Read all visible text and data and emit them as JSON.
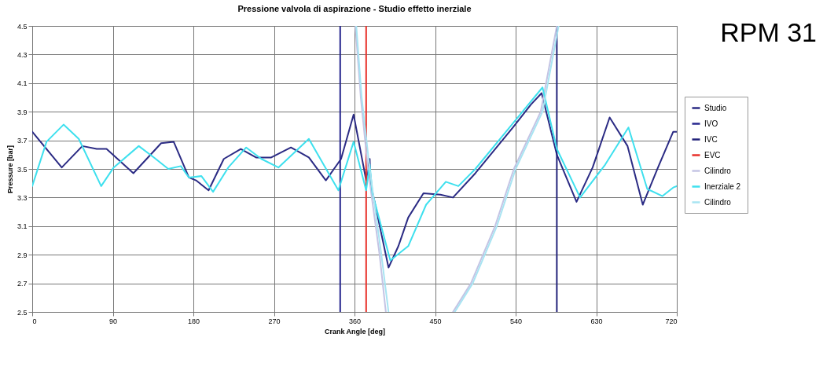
{
  "chart_data": {
    "type": "line",
    "title": "Pressione valvola di aspirazione - Studio effetto inerziale",
    "xlabel": "Crank Angle [deg]",
    "ylabel": "Pressure [bar]",
    "annotations": [
      "RPM 31"
    ],
    "xlim": [
      0,
      720
    ],
    "xticks": [
      0,
      90,
      180,
      270,
      360,
      450,
      540,
      630,
      720
    ],
    "ylim": [
      2.5,
      4.5
    ],
    "yticks": [
      2.5,
      2.7,
      2.9,
      3.1,
      3.3,
      3.5,
      3.7,
      3.9,
      4.1,
      4.3,
      4.5
    ],
    "grid": true,
    "legend": "right",
    "marker": "none",
    "line_style": "solid",
    "series": [
      {
        "name": "Studio",
        "color": "#2b2b84",
        "x": [
          0,
          33,
          56,
          72,
          83,
          113,
          144,
          158,
          175,
          183,
          197,
          214,
          233,
          250,
          267,
          289,
          309,
          328,
          345,
          359,
          373,
          377,
          378,
          398,
          409,
          420,
          437,
          456,
          470,
          495,
          537,
          557,
          569,
          586,
          608,
          626,
          645,
          665,
          682,
          699,
          716,
          720
        ],
        "values": [
          3.76,
          3.51,
          3.66,
          3.64,
          3.64,
          3.47,
          3.68,
          3.69,
          3.44,
          3.42,
          3.35,
          3.57,
          3.64,
          3.58,
          3.58,
          3.65,
          3.58,
          3.42,
          3.57,
          3.88,
          3.42,
          3.57,
          3.4,
          2.81,
          2.96,
          3.16,
          3.33,
          3.32,
          3.3,
          3.47,
          3.79,
          3.95,
          4.03,
          3.6,
          3.27,
          3.51,
          3.86,
          3.66,
          3.25,
          3.51,
          3.76,
          3.76
        ]
      },
      {
        "name": "IVO",
        "color": "#27278e",
        "x": [
          344,
          344
        ],
        "values": [
          2.5,
          4.5
        ]
      },
      {
        "name": "IVC",
        "color": "#22227a",
        "x": [
          586,
          586
        ],
        "values": [
          2.5,
          4.5
        ]
      },
      {
        "name": "EVC",
        "color": "#e8312a",
        "x": [
          373,
          373
        ],
        "values": [
          2.5,
          4.5
        ]
      },
      {
        "name": "Cilindro",
        "color": "#c4c4e4",
        "x": [
          361,
          367,
          375,
          388,
          395,
          432,
          470,
          490,
          517,
          538,
          568,
          586
        ],
        "values": [
          4.5,
          4.0,
          3.5,
          2.9,
          2.5,
          null,
          2.5,
          2.7,
          3.1,
          3.5,
          3.9,
          4.5
        ]
      },
      {
        "name": "Inerziale 2",
        "color": "#3ee0ee",
        "x": [
          0,
          16,
          35,
          52,
          77,
          91,
          119,
          136,
          152,
          166,
          175,
          189,
          202,
          219,
          239,
          256,
          275,
          309,
          342,
          359,
          373,
          377,
          380,
          400,
          420,
          440,
          462,
          476,
          495,
          537,
          570,
          586,
          612,
          640,
          666,
          687,
          704,
          716,
          720
        ],
        "values": [
          3.38,
          3.69,
          3.81,
          3.71,
          3.38,
          3.51,
          3.66,
          3.58,
          3.5,
          3.52,
          3.44,
          3.45,
          3.34,
          3.51,
          3.65,
          3.57,
          3.51,
          3.71,
          3.35,
          3.69,
          3.35,
          3.53,
          3.33,
          2.86,
          2.96,
          3.25,
          3.41,
          3.38,
          3.5,
          3.82,
          4.07,
          3.64,
          3.3,
          3.53,
          3.79,
          3.36,
          3.31,
          3.37,
          3.38
        ]
      },
      {
        "name": "Cilindro",
        "color": "#a8e4f2",
        "x": [
          362,
          368,
          377,
          390,
          398,
          434,
          472,
          492,
          519,
          540,
          570,
          588
        ],
        "values": [
          4.5,
          4.0,
          3.5,
          2.9,
          2.5,
          null,
          2.5,
          2.7,
          3.1,
          3.5,
          3.9,
          4.5
        ]
      }
    ]
  }
}
